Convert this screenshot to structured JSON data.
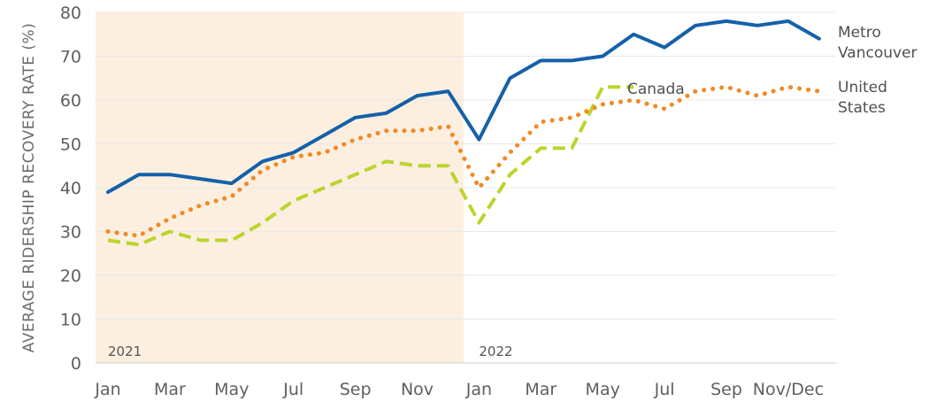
{
  "chart_data": {
    "type": "line",
    "ylabel": "AVERAGE RIDERSHIP RECOVERY RATE (%)",
    "ylim": [
      0,
      80
    ],
    "yticks": [
      "0",
      "10",
      "20",
      "30",
      "40",
      "50",
      "60",
      "70",
      "80"
    ],
    "xtick_labels": [
      "Jan",
      "Mar",
      "May",
      "Jul",
      "Sep",
      "Nov",
      "Jan",
      "Mar",
      "May",
      "Jul",
      "Sep",
      "Nov/Dec"
    ],
    "xtick_positions": [
      0,
      2,
      4,
      6,
      8,
      10,
      12,
      14,
      16,
      18,
      20,
      22
    ],
    "year_labels": [
      {
        "text": "2021",
        "at": 0
      },
      {
        "text": "2022",
        "at": 12
      }
    ],
    "shaded_region": {
      "from": 0,
      "to": 11.5,
      "color": "#fcefe0"
    },
    "grid": true,
    "series": [
      {
        "name": "Metro Vancouver",
        "label_lines": [
          "Metro",
          "Vancouver"
        ],
        "color": "#1560a9",
        "style": "solid",
        "x": [
          0,
          1,
          2,
          3,
          4,
          5,
          6,
          7,
          8,
          9,
          10,
          11,
          12,
          13,
          14,
          15,
          16,
          17,
          18,
          19,
          20,
          21,
          22,
          23
        ],
        "values": [
          39,
          43,
          43,
          42,
          41,
          46,
          48,
          52,
          56,
          57,
          61,
          62,
          51,
          65,
          69,
          69,
          70,
          75,
          72,
          77,
          78,
          77,
          78,
          74
        ]
      },
      {
        "name": "United States",
        "label_lines": [
          "United",
          "States"
        ],
        "color": "#f08a24",
        "style": "dotted",
        "x": [
          0,
          1,
          2,
          3,
          4,
          5,
          6,
          7,
          8,
          9,
          10,
          11,
          12,
          13,
          14,
          15,
          16,
          17,
          18,
          19,
          20,
          21,
          22,
          23
        ],
        "values": [
          30,
          29,
          33,
          36,
          38,
          44,
          47,
          48,
          51,
          53,
          53,
          54,
          40,
          48,
          55,
          56,
          59,
          60,
          58,
          62,
          63,
          61,
          63,
          62
        ]
      },
      {
        "name": "Canada",
        "label_lines": [
          "Canada"
        ],
        "color": "#bcd42c",
        "style": "dashed",
        "x": [
          0,
          1,
          2,
          3,
          4,
          5,
          6,
          7,
          8,
          9,
          10,
          11,
          12,
          13,
          14,
          15,
          16,
          17
        ],
        "values": [
          28,
          27,
          30,
          28,
          28,
          32,
          37,
          40,
          43,
          46,
          45,
          45,
          32,
          43,
          49,
          49,
          63,
          63
        ]
      }
    ]
  }
}
